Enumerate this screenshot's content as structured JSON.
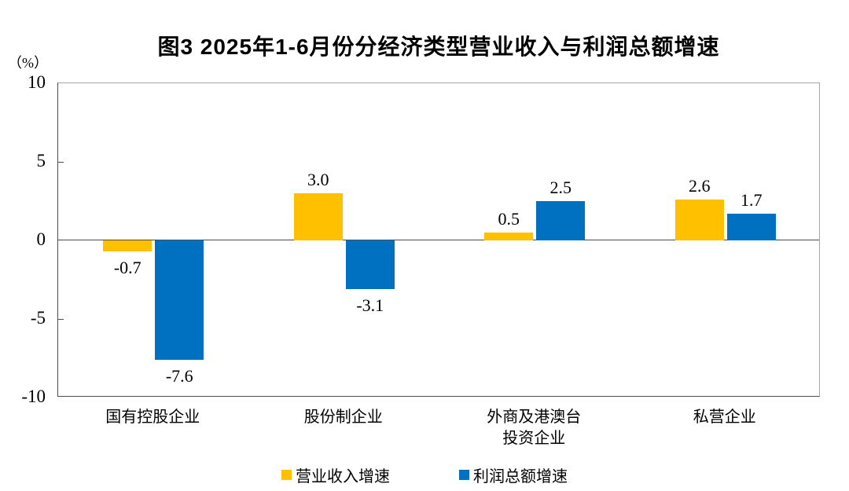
{
  "title": "图3 2025年1-6月份分经济类型营业收入与利润总额增速",
  "chart_data": {
    "type": "bar",
    "title": "图3 2025年1-6月份分经济类型营业收入与利润总额增速",
    "ylabel": "（%）",
    "xlabel": "",
    "ylim": [
      -10,
      10
    ],
    "yticks": [
      10,
      5,
      0,
      -5,
      -10
    ],
    "grid": false,
    "legend_position": "bottom",
    "categories": [
      "国有控股企业",
      "股份制企业",
      "外商及港澳台\n投资企业",
      "私营企业"
    ],
    "series": [
      {
        "name": "营业收入增速",
        "color": "#FFC000",
        "values": [
          -0.7,
          3.0,
          0.5,
          2.6
        ],
        "labels": [
          "-0.7",
          "3.0",
          "0.5",
          "2.6"
        ]
      },
      {
        "name": "利润总额增速",
        "color": "#0070C0",
        "values": [
          -7.6,
          -3.1,
          2.5,
          1.7
        ],
        "labels": [
          "-7.6",
          "-3.1",
          "2.5",
          "1.7"
        ]
      }
    ]
  },
  "colors": {
    "bar_yellow": "#FFC000",
    "bar_blue": "#0070C0",
    "axis_dark": "#4d4d4d",
    "border_light": "#a6a6a6",
    "text": "#000000",
    "background": "#ffffff"
  }
}
